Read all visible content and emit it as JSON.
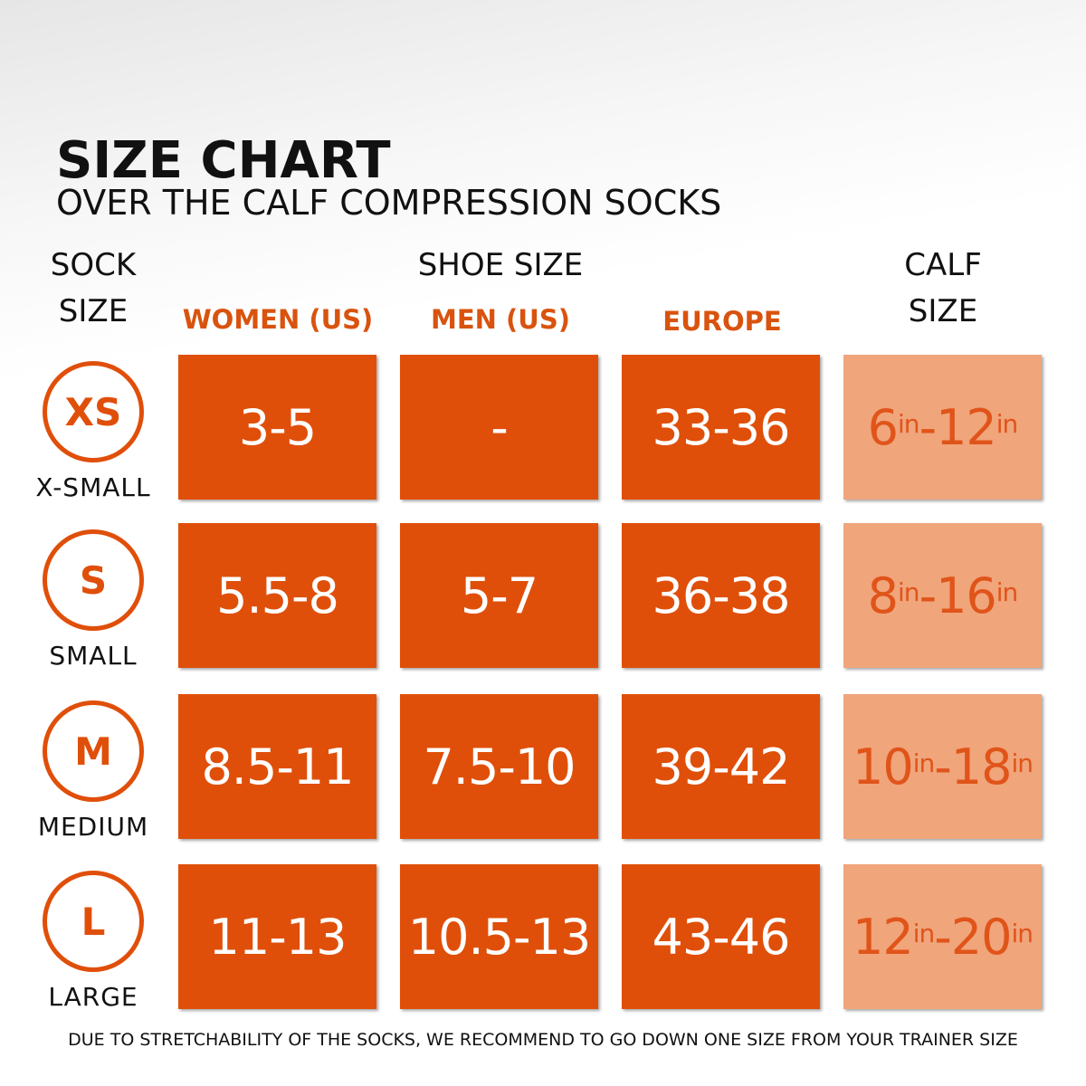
{
  "header": {
    "title": "SIZE CHART",
    "subtitle": "OVER THE CALF COMPRESSION SOCKS"
  },
  "columns": {
    "sock_size": [
      "SOCK",
      "SIZE"
    ],
    "shoe_size": "SHOE SIZE",
    "women": "WOMEN (US)",
    "men": "MEN (US)",
    "europe": "EUROPE",
    "calf_size": [
      "CALF",
      "SIZE"
    ]
  },
  "rows": [
    {
      "code": "XS",
      "name": "X-SMALL",
      "women": "3-5",
      "men": "-",
      "europe": "33-36",
      "calf": [
        "6",
        "in",
        "-",
        "12",
        "in"
      ]
    },
    {
      "code": "S",
      "name": "SMALL",
      "women": "5.5-8",
      "men": "5-7",
      "europe": "36-38",
      "calf": [
        "8",
        "in",
        "-",
        "16",
        "in"
      ]
    },
    {
      "code": "M",
      "name": "MEDIUM",
      "women": "8.5-11",
      "men": "7.5-10",
      "europe": "39-42",
      "calf": [
        "10",
        "in",
        "-",
        "18",
        "in"
      ]
    },
    {
      "code": "L",
      "name": "LARGE",
      "women": "11-13",
      "men": "10.5-13",
      "europe": "43-46",
      "calf": [
        "12",
        "in",
        "-",
        "20",
        "in"
      ]
    }
  ],
  "footer": "DUE TO STRETCHABILITY OF THE SOCKS, WE RECOMMEND TO GO DOWN ONE SIZE FROM YOUR TRAINER SIZE"
}
